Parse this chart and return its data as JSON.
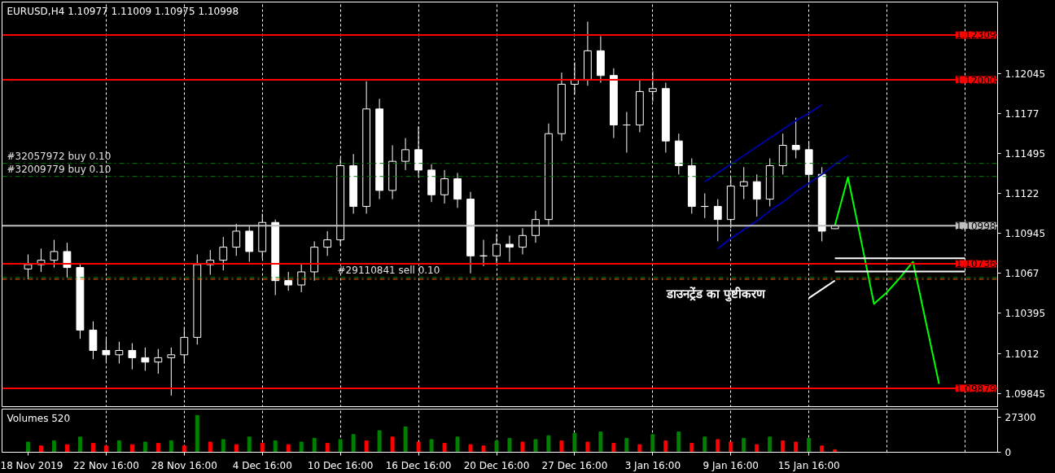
{
  "chart_data": [
    {
      "type": "candlestick",
      "title": "EURUSD,H4  1.10977 1.11009 1.10975 1.10998",
      "categories": [
        null,
        null,
        null,
        null,
        null,
        null,
        null,
        null,
        null,
        null,
        null,
        null,
        null,
        null,
        null,
        null,
        null,
        null,
        null,
        null,
        null,
        null,
        null,
        null,
        null,
        null,
        null,
        null,
        null,
        null,
        null,
        null,
        null,
        null,
        null,
        null,
        null,
        null,
        null,
        null,
        null,
        null,
        null,
        null,
        null,
        null,
        null,
        null,
        null,
        null,
        null,
        null,
        null,
        null,
        null,
        null,
        null,
        null,
        null,
        null,
        null,
        null,
        null,
        null,
        null,
        null,
        null,
        null,
        null,
        null,
        null,
        null,
        null,
        null,
        null
      ],
      "ohlc": [
        [
          1.107,
          1.108,
          1.1063,
          1.1073
        ],
        [
          1.1073,
          1.1084,
          1.1068,
          1.1076
        ],
        [
          1.1076,
          1.109,
          1.1071,
          1.1082
        ],
        [
          1.1082,
          1.1088,
          1.1064,
          1.1071
        ],
        [
          1.1071,
          1.1074,
          1.1022,
          1.1028
        ],
        [
          1.1028,
          1.1034,
          1.1008,
          1.1014
        ],
        [
          1.1014,
          1.1022,
          1.1006,
          1.1011
        ],
        [
          1.1011,
          1.102,
          1.1005,
          1.1014
        ],
        [
          1.1014,
          1.1019,
          1.1001,
          1.1009
        ],
        [
          1.1009,
          1.1016,
          1.1,
          1.1006
        ],
        [
          1.1006,
          1.1015,
          1.0998,
          1.1009
        ],
        [
          1.1009,
          1.1016,
          1.0983,
          1.1011
        ],
        [
          1.1011,
          1.103,
          1.1005,
          1.1023
        ],
        [
          1.1023,
          1.108,
          1.1018,
          1.1073
        ],
        [
          1.1073,
          1.1083,
          1.1066,
          1.1076
        ],
        [
          1.1076,
          1.1092,
          1.1069,
          1.1085
        ],
        [
          1.1085,
          1.1101,
          1.1079,
          1.1096
        ],
        [
          1.1096,
          1.11,
          1.1075,
          1.1082
        ],
        [
          1.1082,
          1.1108,
          1.1077,
          1.1102
        ],
        [
          1.1102,
          1.1104,
          1.1052,
          1.1062
        ],
        [
          1.1062,
          1.1068,
          1.1055,
          1.1059
        ],
        [
          1.1059,
          1.1074,
          1.1054,
          1.1068
        ],
        [
          1.1068,
          1.1089,
          1.1062,
          1.1085
        ],
        [
          1.1085,
          1.1096,
          1.1079,
          1.109
        ],
        [
          1.109,
          1.1146,
          1.1086,
          1.1141
        ],
        [
          1.1141,
          1.1149,
          1.1108,
          1.1113
        ],
        [
          1.1113,
          1.1199,
          1.1108,
          1.118
        ],
        [
          1.118,
          1.1187,
          1.1118,
          1.1124
        ],
        [
          1.1124,
          1.1155,
          1.1118,
          1.1144
        ],
        [
          1.1144,
          1.116,
          1.1138,
          1.1152
        ],
        [
          1.1152,
          1.1168,
          1.1133,
          1.1138
        ],
        [
          1.1138,
          1.1142,
          1.1116,
          1.1121
        ],
        [
          1.1121,
          1.1138,
          1.1115,
          1.1132
        ],
        [
          1.1132,
          1.1136,
          1.1112,
          1.1118
        ],
        [
          1.1118,
          1.1123,
          1.1067,
          1.1079
        ],
        [
          1.1079,
          1.109,
          1.1072,
          1.1079
        ],
        [
          1.1079,
          1.1094,
          1.1073,
          1.1087
        ],
        [
          1.1087,
          1.1093,
          1.1075,
          1.1085
        ],
        [
          1.1085,
          1.1098,
          1.108,
          1.1093
        ],
        [
          1.1093,
          1.111,
          1.1088,
          1.1104
        ],
        [
          1.1104,
          1.117,
          1.11,
          1.1163
        ],
        [
          1.1163,
          1.1205,
          1.1158,
          1.1197
        ],
        [
          1.1197,
          1.1212,
          1.119,
          1.12
        ],
        [
          1.12,
          1.124,
          1.1196,
          1.122
        ],
        [
          1.122,
          1.123,
          1.1198,
          1.1203
        ],
        [
          1.1203,
          1.1208,
          1.116,
          1.1169
        ],
        [
          1.1169,
          1.1178,
          1.115,
          1.1169
        ],
        [
          1.1169,
          1.12,
          1.1164,
          1.1192
        ],
        [
          1.1192,
          1.1206,
          1.1185,
          1.1194
        ],
        [
          1.1194,
          1.1198,
          1.115,
          1.1158
        ],
        [
          1.1158,
          1.1163,
          1.1135,
          1.1141
        ],
        [
          1.1141,
          1.1146,
          1.1108,
          1.1113
        ],
        [
          1.1113,
          1.1122,
          1.1105,
          1.1113
        ],
        [
          1.1113,
          1.1118,
          1.1089,
          1.1104
        ],
        [
          1.1104,
          1.1133,
          1.1098,
          1.1127
        ],
        [
          1.1127,
          1.114,
          1.1118,
          1.113
        ],
        [
          1.113,
          1.1135,
          1.1106,
          1.1118
        ],
        [
          1.1118,
          1.1146,
          1.1113,
          1.1141
        ],
        [
          1.1141,
          1.1163,
          1.1135,
          1.1155
        ],
        [
          1.1155,
          1.1174,
          1.1146,
          1.1152
        ],
        [
          1.1152,
          1.1158,
          1.1128,
          1.1135
        ],
        [
          1.1135,
          1.114,
          1.1089,
          1.1096
        ],
        [
          1.10977,
          1.11009,
          1.10975,
          1.10998
        ],
        null,
        null,
        null,
        null,
        null,
        null,
        null,
        null,
        null,
        null,
        null,
        null
      ],
      "ylim": [
        1.09748,
        1.12535
      ],
      "yticks": [
        1.12045,
        1.1177,
        1.11495,
        1.1122,
        1.10945,
        1.1067,
        1.10395,
        1.1012,
        1.09845
      ],
      "tick_labels": "y",
      "grid": "x",
      "series": [
        {
          "type": "line",
          "color": "#0000a0",
          "values": [
            null,
            null,
            null,
            null,
            null,
            null,
            null,
            null,
            null,
            null,
            null,
            null,
            null,
            null,
            null,
            null,
            null,
            null,
            null,
            null,
            null,
            null,
            null,
            null,
            null,
            null,
            null,
            null,
            null,
            null,
            null,
            null,
            null,
            null,
            null,
            null,
            null,
            null,
            null,
            null,
            null,
            null,
            null,
            null,
            null,
            null,
            null,
            null,
            null,
            null,
            null,
            null,
            1.113,
            1.1136,
            1.1142,
            1.1148,
            1.1154,
            1.116,
            1.1166,
            1.1172,
            1.1177,
            1.1183,
            null,
            null,
            null,
            null,
            null,
            null,
            null,
            null,
            null,
            null,
            null,
            null,
            null
          ]
        },
        {
          "type": "line",
          "color": "#0000a0",
          "values": [
            null,
            null,
            null,
            null,
            null,
            null,
            null,
            null,
            null,
            null,
            null,
            null,
            null,
            null,
            null,
            null,
            null,
            null,
            null,
            null,
            null,
            null,
            null,
            null,
            null,
            null,
            null,
            null,
            null,
            null,
            null,
            null,
            null,
            null,
            null,
            null,
            null,
            null,
            null,
            null,
            null,
            null,
            null,
            null,
            null,
            null,
            null,
            null,
            null,
            null,
            null,
            null,
            null,
            1.1084,
            1.1091,
            1.1097,
            1.1103,
            1.111,
            1.1116,
            1.1123,
            1.1129,
            1.1135,
            1.1142,
            1.1148,
            null,
            null,
            null,
            null,
            null,
            null,
            null,
            null,
            null,
            null,
            null
          ]
        },
        {
          "type": "line",
          "color": "#00ff00",
          "values": [
            null,
            null,
            null,
            null,
            null,
            null,
            null,
            null,
            null,
            null,
            null,
            null,
            null,
            null,
            null,
            null,
            null,
            null,
            null,
            null,
            null,
            null,
            null,
            null,
            null,
            null,
            null,
            null,
            null,
            null,
            null,
            null,
            null,
            null,
            null,
            null,
            null,
            null,
            null,
            null,
            null,
            null,
            null,
            null,
            null,
            null,
            null,
            null,
            null,
            null,
            null,
            null,
            null,
            null,
            null,
            null,
            null,
            null,
            null,
            null,
            null,
            null,
            1.11,
            1.1133,
            1.109,
            1.1046,
            1.1054,
            1.1064,
            1.1075,
            1.1033,
            1.0991,
            null,
            null,
            null,
            null
          ]
        },
        {
          "type": "line",
          "color": "#ffffff",
          "values": [
            null,
            null,
            null,
            null,
            null,
            null,
            null,
            null,
            null,
            null,
            null,
            null,
            null,
            null,
            null,
            null,
            null,
            null,
            null,
            null,
            null,
            null,
            null,
            null,
            null,
            null,
            null,
            null,
            null,
            null,
            null,
            null,
            null,
            null,
            null,
            null,
            null,
            null,
            null,
            null,
            null,
            null,
            null,
            null,
            null,
            null,
            null,
            null,
            null,
            null,
            null,
            null,
            null,
            null,
            null,
            null,
            null,
            null,
            null,
            null,
            null,
            null,
            1.10773,
            1.10773,
            1.10773,
            1.10773,
            1.10773,
            1.10773,
            1.10773,
            1.10773,
            1.10773,
            1.10773,
            1.10773,
            null,
            null
          ]
        },
        {
          "type": "line",
          "color": "#ffffff",
          "values": [
            null,
            null,
            null,
            null,
            null,
            null,
            null,
            null,
            null,
            null,
            null,
            null,
            null,
            null,
            null,
            null,
            null,
            null,
            null,
            null,
            null,
            null,
            null,
            null,
            null,
            null,
            null,
            null,
            null,
            null,
            null,
            null,
            null,
            null,
            null,
            null,
            null,
            null,
            null,
            null,
            null,
            null,
            null,
            null,
            null,
            null,
            null,
            null,
            null,
            null,
            null,
            null,
            null,
            null,
            null,
            null,
            null,
            null,
            null,
            null,
            null,
            null,
            1.10683,
            1.10683,
            1.10683,
            1.10683,
            1.10683,
            1.10683,
            1.10683,
            1.10683,
            1.10683,
            1.10683,
            1.10683,
            null,
            null
          ]
        },
        {
          "type": "line",
          "color": "#ffffff",
          "values": [
            null,
            null,
            null,
            null,
            null,
            null,
            null,
            null,
            null,
            null,
            null,
            null,
            null,
            null,
            null,
            null,
            null,
            null,
            null,
            null,
            null,
            null,
            null,
            null,
            null,
            null,
            null,
            null,
            null,
            null,
            null,
            null,
            null,
            null,
            null,
            null,
            null,
            null,
            null,
            null,
            null,
            null,
            null,
            null,
            null,
            null,
            null,
            null,
            null,
            null,
            null,
            null,
            null,
            null,
            null,
            null,
            null,
            null,
            null,
            null,
            1.105,
            1.1056,
            1.1062,
            null,
            null,
            null,
            null,
            null,
            null,
            null,
            null,
            null,
            null,
            null,
            null
          ]
        }
      ],
      "ref_lines": [
        {
          "axis": "y",
          "value": 1.12309,
          "label": "1.12309",
          "color": "#ff0000",
          "line_style": "solid"
        },
        {
          "axis": "y",
          "value": 1.12,
          "label": "1.12000",
          "color": "#ff0000",
          "line_style": "solid"
        },
        {
          "axis": "y",
          "value": 1.10736,
          "label": "1.10736",
          "color": "#ff0000",
          "line_style": "solid"
        },
        {
          "axis": "y",
          "value": 1.09879,
          "label": "1.09879",
          "color": "#ff0000",
          "line_style": "solid"
        },
        {
          "axis": "y",
          "value": 1.10998,
          "label": "1.10998",
          "color": "#c0c0c0",
          "line_style": "solid"
        },
        {
          "axis": "y",
          "value": 1.11426,
          "label": "#32057972 buy 0.10",
          "color": "#008000",
          "line_style": "dashed"
        },
        {
          "axis": "y",
          "value": 1.11336,
          "label": "#32009779 buy 0.10",
          "color": "#008000",
          "line_style": "dashed"
        },
        {
          "axis": "y",
          "value": 1.10642,
          "label": "#29110841 sell 0.10",
          "color": "#008000",
          "line_style": "dashed"
        },
        {
          "axis": "y",
          "value": 1.1063,
          "label": null,
          "color": "#ff6a00",
          "line_style": "dashed"
        }
      ],
      "annotations": [
        "डाउनट्रेंड का पुष्टीकरण"
      ]
    },
    {
      "type": "bar",
      "title": "Volumes 520",
      "categories": [
        "18 Nov 2019",
        null,
        null,
        null,
        null,
        null,
        "22 Nov 16:00",
        null,
        null,
        null,
        null,
        null,
        "28 Nov 16:00",
        null,
        null,
        null,
        null,
        null,
        "4 Dec 16:00",
        null,
        null,
        null,
        null,
        null,
        "10 Dec 16:00",
        null,
        null,
        null,
        null,
        null,
        "16 Dec 16:00",
        null,
        null,
        null,
        null,
        null,
        "20 Dec 16:00",
        null,
        null,
        null,
        null,
        null,
        "27 Dec 16:00",
        null,
        null,
        null,
        null,
        null,
        "3 Jan 16:00",
        null,
        null,
        null,
        null,
        null,
        "9 Jan 16:00",
        null,
        null,
        null,
        null,
        null,
        "15 Jan 16:00",
        null,
        null,
        null,
        null,
        null,
        null,
        null,
        null,
        null,
        null,
        null,
        null,
        null,
        null
      ],
      "values": [
        8000,
        5000,
        9000,
        6000,
        12000,
        7000,
        5000,
        9000,
        6000,
        8000,
        7000,
        9000,
        5000,
        29000,
        8000,
        10000,
        6000,
        12000,
        7000,
        9000,
        6000,
        8000,
        11000,
        7000,
        10000,
        14000,
        9000,
        17000,
        12000,
        20000,
        8000,
        10000,
        7000,
        12000,
        6000,
        5000,
        9000,
        11000,
        8000,
        10000,
        13000,
        9000,
        15000,
        8000,
        16000,
        7000,
        11000,
        6000,
        14000,
        9000,
        16000,
        7000,
        12000,
        10000,
        8000,
        11000,
        6000,
        12000,
        9000,
        8000,
        11000,
        5000,
        2000,
        null,
        null,
        null,
        null,
        null,
        null,
        null,
        null,
        null,
        null,
        null,
        null
      ],
      "colors": [
        "#008000",
        "#ff0000",
        "#008000",
        "#ff0000",
        "#008000",
        "#ff0000",
        "#ff0000",
        "#008000",
        "#ff0000",
        "#008000",
        "#ff0000",
        "#008000",
        "#ff0000",
        "#008000",
        "#ff0000",
        "#008000",
        "#ff0000",
        "#008000",
        "#ff0000",
        "#008000",
        "#ff0000",
        "#008000",
        "#008000",
        "#ff0000",
        "#008000",
        "#008000",
        "#ff0000",
        "#008000",
        "#ff0000",
        "#008000",
        "#ff0000",
        "#008000",
        "#ff0000",
        "#008000",
        "#ff0000",
        "#ff0000",
        "#008000",
        "#008000",
        "#ff0000",
        "#008000",
        "#008000",
        "#ff0000",
        "#008000",
        "#ff0000",
        "#008000",
        "#ff0000",
        "#008000",
        "#ff0000",
        "#008000",
        "#ff0000",
        "#008000",
        "#ff0000",
        "#008000",
        "#ff0000",
        "#ff0000",
        "#008000",
        "#ff0000",
        "#008000",
        "#ff0000",
        "#ff0000",
        "#008000",
        "#ff0000",
        "#ff0000",
        null,
        null,
        null,
        null,
        null,
        null,
        null,
        null,
        null,
        null,
        null,
        null
      ],
      "ylim": [
        0,
        34000
      ],
      "yticks": [
        0,
        27300
      ],
      "grid": "x"
    }
  ]
}
